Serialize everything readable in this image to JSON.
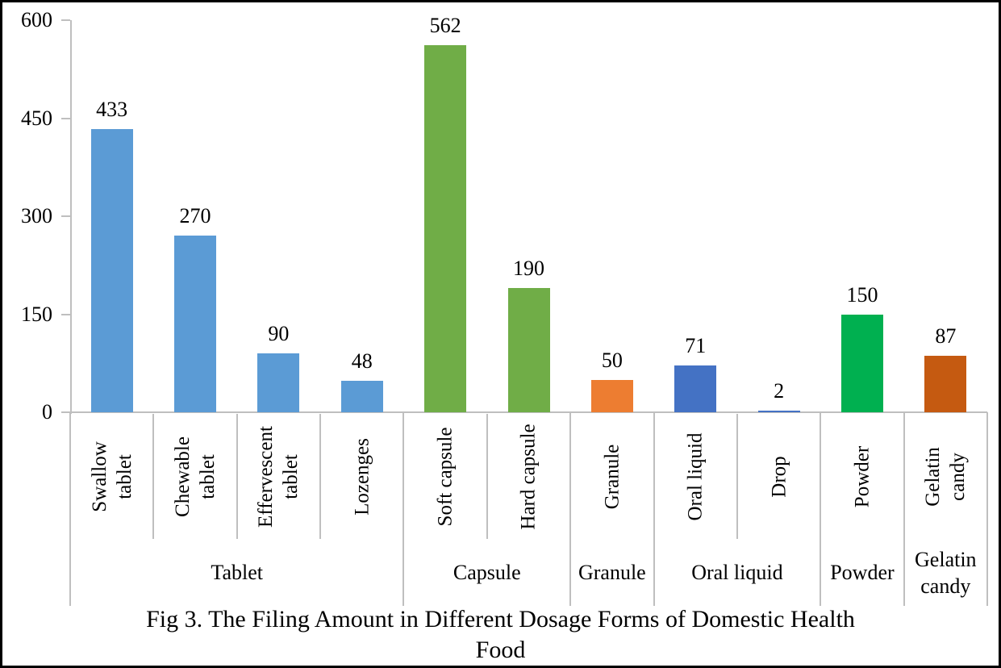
{
  "figure": {
    "title_display": "Fig 3. The Filing Amount in Different Dosage Forms of Domestic Health\nFood"
  },
  "chart_data": {
    "type": "bar",
    "title": "Fig 3. The Filing Amount in Different Dosage Forms of Domestic Health Food",
    "xlabel": "",
    "ylabel": "",
    "ylim": [
      0,
      600
    ],
    "yticks": [
      "0",
      "150",
      "300",
      "450",
      "600"
    ],
    "grid": false,
    "legend_position": "none",
    "axis_color": "#BFBFBF",
    "text_color": "#000000",
    "bars": [
      {
        "label": "Swallow\ntablet",
        "value": 433,
        "group": "Tablet",
        "color": "#5B9BD5"
      },
      {
        "label": "Chewable\ntablet",
        "value": 270,
        "group": "Tablet",
        "color": "#5B9BD5"
      },
      {
        "label": "Effervescent\ntablet",
        "value": 90,
        "group": "Tablet",
        "color": "#5B9BD5"
      },
      {
        "label": "Lozenges",
        "value": 48,
        "group": "Tablet",
        "color": "#5B9BD5"
      },
      {
        "label": "Soft capsule",
        "value": 562,
        "group": "Capsule",
        "color": "#70AD47"
      },
      {
        "label": "Hard capsule",
        "value": 190,
        "group": "Capsule",
        "color": "#70AD47"
      },
      {
        "label": "Granule",
        "value": 50,
        "group": "Granule",
        "color": "#ED7D31"
      },
      {
        "label": "Oral liquid",
        "value": 71,
        "group": "Oral liquid",
        "color": "#4472C4"
      },
      {
        "label": "Drop",
        "value": 2,
        "group": "Oral liquid",
        "color": "#4472C4"
      },
      {
        "label": "Powder",
        "value": 150,
        "group": "Powder",
        "color": "#00B050"
      },
      {
        "label": "Gelatin\ncandy",
        "value": 87,
        "group": "Gelatin candy",
        "color": "#C55A11"
      }
    ],
    "groups": [
      {
        "label": "Tablet",
        "span": 4
      },
      {
        "label": "Capsule",
        "span": 2
      },
      {
        "label": "Granule",
        "span": 1
      },
      {
        "label": "Oral liquid",
        "span": 2
      },
      {
        "label": "Powder",
        "span": 1
      },
      {
        "label": "Gelatin\ncandy",
        "span": 1
      }
    ]
  }
}
